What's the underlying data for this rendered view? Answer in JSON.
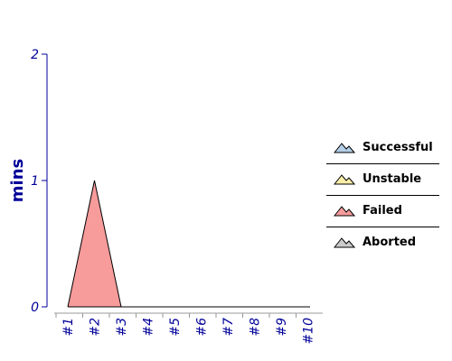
{
  "chart_data": {
    "type": "area",
    "categories": [
      "#1",
      "#2",
      "#3",
      "#4",
      "#5",
      "#6",
      "#7",
      "#8",
      "#9",
      "#10"
    ],
    "ylabel": "mins",
    "ylim": [
      0,
      2
    ],
    "y_ticks": [
      "0",
      "1",
      "2"
    ],
    "grid": false,
    "legend_position": "right",
    "series": [
      {
        "name": "Successful",
        "color": "#b3cee6",
        "values": [
          0,
          0,
          0,
          0,
          0,
          0,
          0,
          0,
          0,
          0
        ]
      },
      {
        "name": "Unstable",
        "color": "#fbeea8",
        "values": [
          0,
          0,
          0,
          0,
          0,
          0,
          0,
          0,
          0,
          0
        ]
      },
      {
        "name": "Failed",
        "color": "#f79b9b",
        "values": [
          0,
          1,
          0,
          0,
          0,
          0,
          0,
          0,
          0,
          0
        ]
      },
      {
        "name": "Aborted",
        "color": "#cccccc",
        "values": [
          0,
          0,
          0,
          0,
          0,
          0,
          0,
          0,
          0,
          0
        ]
      }
    ],
    "colors": {
      "axis": "#000099",
      "tick_label": "#000099",
      "area_outline": "#000000"
    }
  }
}
